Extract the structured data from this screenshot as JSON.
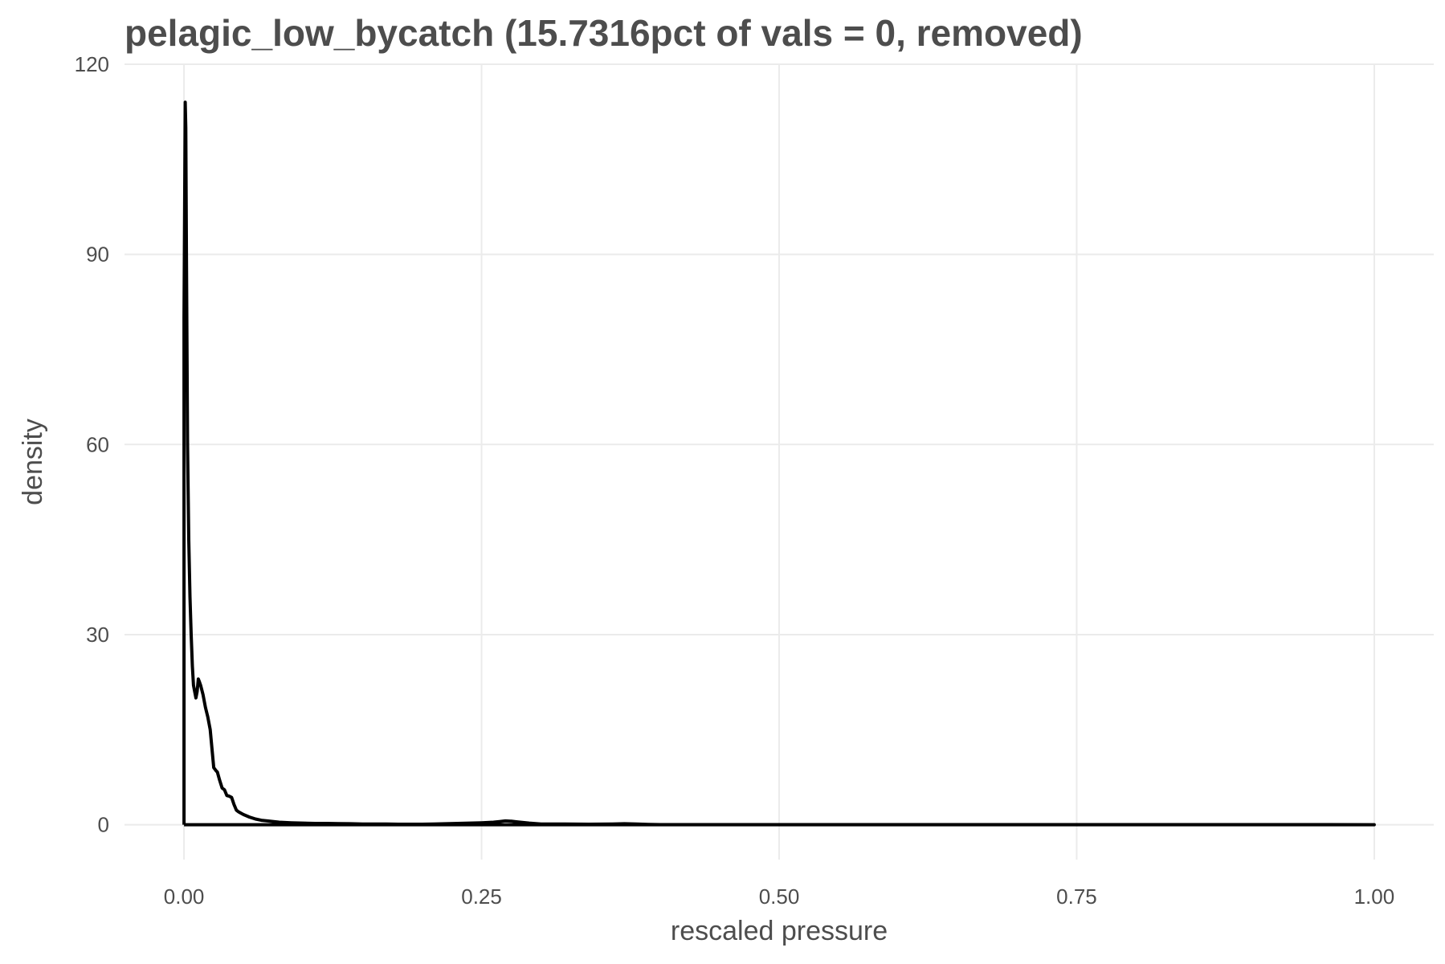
{
  "chart_data": {
    "type": "line",
    "title": "pelagic_low_bycatch (15.7316pct of vals = 0, removed)",
    "xlabel": "rescaled pressure",
    "ylabel": "density",
    "xlim": [
      -0.05,
      1.05
    ],
    "ylim": [
      -5.5,
      120
    ],
    "x_ticks": [
      "0.00",
      "0.25",
      "0.50",
      "0.75",
      "1.00"
    ],
    "x_tick_values": [
      0,
      0.25,
      0.5,
      0.75,
      1.0
    ],
    "y_ticks": [
      "0",
      "30",
      "60",
      "90",
      "120"
    ],
    "y_tick_values": [
      0,
      30,
      60,
      90,
      120
    ],
    "grid": true,
    "colors": {
      "line": "#000000",
      "grid": "#ebebeb",
      "text": "#4d4d4d"
    },
    "series": [
      {
        "x": [
          0,
          0,
          0.001,
          0.0015,
          0.002,
          0.003,
          0.004,
          0.005,
          0.006,
          0.007,
          0.008,
          0.009,
          0.01,
          0.011,
          0.012,
          0.013,
          0.014,
          0.016,
          0.018,
          0.02,
          0.022,
          0.025,
          0.027,
          0.028,
          0.03,
          0.032,
          0.034,
          0.036,
          0.038,
          0.04,
          0.042,
          0.044,
          0.046,
          0.048,
          0.05,
          0.055,
          0.06,
          0.065,
          0.07,
          0.08,
          0.09,
          0.1,
          0.11,
          0.12,
          0.13,
          0.14,
          0.15,
          0.16,
          0.17,
          0.18,
          0.19,
          0.2,
          0.21,
          0.22,
          0.23,
          0.24,
          0.25,
          0.26,
          0.265,
          0.27,
          0.275,
          0.28,
          0.29,
          0.3,
          0.32,
          0.34,
          0.36,
          0.37,
          0.38,
          0.39,
          0.4,
          0.45,
          0.5,
          0.6,
          0.7,
          0.8,
          0.9,
          1.0,
          0
        ],
        "y": [
          0,
          80,
          114,
          110,
          90,
          60,
          45,
          36,
          30,
          25,
          22,
          21,
          20,
          21,
          23,
          22.5,
          22,
          20.5,
          18.5,
          17,
          15,
          9,
          8.5,
          8.3,
          7,
          5.8,
          5.5,
          4.6,
          4.5,
          4.3,
          3.2,
          2.3,
          2.0,
          1.8,
          1.6,
          1.2,
          0.9,
          0.7,
          0.6,
          0.4,
          0.3,
          0.25,
          0.2,
          0.2,
          0.18,
          0.15,
          0.12,
          0.1,
          0.1,
          0.08,
          0.08,
          0.08,
          0.1,
          0.15,
          0.2,
          0.25,
          0.3,
          0.4,
          0.5,
          0.6,
          0.55,
          0.45,
          0.25,
          0.12,
          0.1,
          0.08,
          0.1,
          0.15,
          0.1,
          0.05,
          0.02,
          0.01,
          0.01,
          0.01,
          0.01,
          0.01,
          0.01,
          0,
          0
        ]
      }
    ]
  }
}
